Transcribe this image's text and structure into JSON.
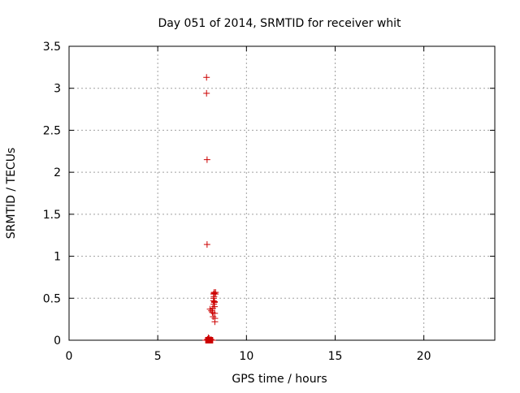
{
  "chart_data": {
    "type": "scatter",
    "title": "Day 051 of 2014, SRMTID for receiver whit",
    "xlabel": "GPS time / hours",
    "ylabel": "SRMTID / TECUs",
    "xlim": [
      0,
      24
    ],
    "ylim": [
      0,
      3.5
    ],
    "x_ticks": [
      0,
      5,
      10,
      15,
      20
    ],
    "x_tick_labels": [
      "0",
      "5",
      "10",
      "15",
      "20"
    ],
    "y_ticks": [
      0,
      0.5,
      1,
      1.5,
      2,
      2.5,
      3,
      3.5
    ],
    "y_tick_labels": [
      "0",
      "0.5",
      "1",
      "1.5",
      "2",
      "2.5",
      "3",
      "3.5"
    ],
    "grid": true,
    "marker": "+",
    "colors": {
      "series": "#cc0000",
      "grid": "#a0a0a0",
      "axis": "#000000"
    },
    "series": [
      {
        "name": "SRMTID",
        "x": [
          7.75,
          7.75,
          7.78,
          7.78,
          7.8,
          7.85,
          7.95,
          8.02,
          8.08,
          8.1,
          8.12,
          8.14,
          8.15,
          8.15,
          8.16,
          8.17,
          8.18,
          8.18,
          8.19,
          8.2,
          8.2,
          8.21,
          8.22,
          8.22,
          8.25,
          8.26,
          7.7,
          7.72,
          7.74,
          7.76,
          7.78,
          7.8,
          7.82,
          7.84,
          7.86,
          7.88,
          7.9,
          7.92,
          7.94,
          7.96,
          7.98,
          8.0,
          8.02,
          8.04,
          8.06,
          8.08,
          8.1,
          7.9,
          7.83,
          8.0
        ],
        "y": [
          3.13,
          2.94,
          2.15,
          1.14,
          0.01,
          0.03,
          0.37,
          0.35,
          0.33,
          0.38,
          0.28,
          0.47,
          0.5,
          0.55,
          0.43,
          0.52,
          0.56,
          0.57,
          0.45,
          0.46,
          0.4,
          0.32,
          0.26,
          0.22,
          0.55,
          0.57,
          0.0,
          0.0,
          0.0,
          0.0,
          0.0,
          0.0,
          0.0,
          0.0,
          0.0,
          0.0,
          0.0,
          0.0,
          0.0,
          0.0,
          0.0,
          0.0,
          0.0,
          0.0,
          0.0,
          0.0,
          0.0,
          0.02,
          0.01,
          0.01
        ]
      }
    ]
  }
}
